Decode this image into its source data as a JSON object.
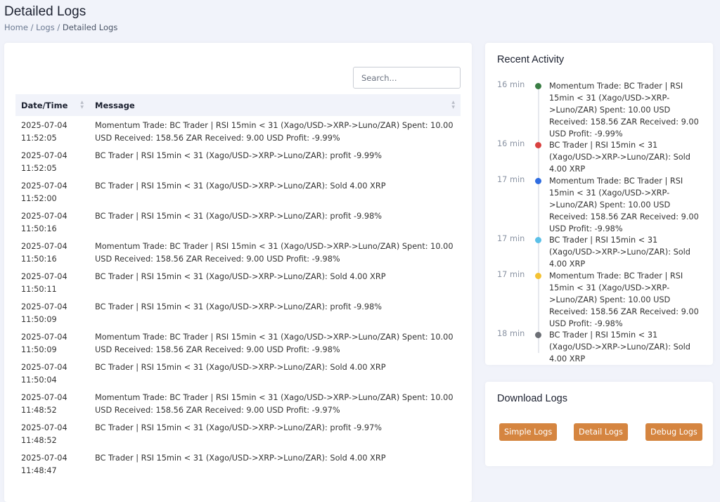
{
  "page": {
    "title": "Detailed Logs",
    "breadcrumb": [
      "Home",
      "Logs",
      "Detailed Logs"
    ]
  },
  "logs": {
    "search_placeholder": "Search...",
    "columns": [
      "Date/Time",
      "Message"
    ],
    "rows": [
      {
        "date": "2025-07-04",
        "time": "11:52:05",
        "message": "Momentum Trade: BC Trader | RSI 15min < 31 (Xago/USD->XRP->Luno/ZAR) Spent: 10.00 USD Received: 158.56 ZAR Received: 9.00 USD Profit: -9.99%"
      },
      {
        "date": "2025-07-04",
        "time": "11:52:05",
        "message": "BC Trader | RSI 15min < 31 (Xago/USD->XRP->Luno/ZAR): profit -9.99%"
      },
      {
        "date": "2025-07-04",
        "time": "11:52:00",
        "message": "BC Trader | RSI 15min < 31 (Xago/USD->XRP->Luno/ZAR): Sold 4.00 XRP"
      },
      {
        "date": "2025-07-04",
        "time": "11:50:16",
        "message": "BC Trader | RSI 15min < 31 (Xago/USD->XRP->Luno/ZAR): profit -9.98%"
      },
      {
        "date": "2025-07-04",
        "time": "11:50:16",
        "message": "Momentum Trade: BC Trader | RSI 15min < 31 (Xago/USD->XRP->Luno/ZAR) Spent: 10.00 USD Received: 158.56 ZAR Received: 9.00 USD Profit: -9.98%"
      },
      {
        "date": "2025-07-04",
        "time": "11:50:11",
        "message": "BC Trader | RSI 15min < 31 (Xago/USD->XRP->Luno/ZAR): Sold 4.00 XRP"
      },
      {
        "date": "2025-07-04",
        "time": "11:50:09",
        "message": "BC Trader | RSI 15min < 31 (Xago/USD->XRP->Luno/ZAR): profit -9.98%"
      },
      {
        "date": "2025-07-04",
        "time": "11:50:09",
        "message": "Momentum Trade: BC Trader | RSI 15min < 31 (Xago/USD->XRP->Luno/ZAR) Spent: 10.00 USD Received: 158.56 ZAR Received: 9.00 USD Profit: -9.98%"
      },
      {
        "date": "2025-07-04",
        "time": "11:50:04",
        "message": "BC Trader | RSI 15min < 31 (Xago/USD->XRP->Luno/ZAR): Sold 4.00 XRP"
      },
      {
        "date": "2025-07-04",
        "time": "11:48:52",
        "message": "Momentum Trade: BC Trader | RSI 15min < 31 (Xago/USD->XRP->Luno/ZAR) Spent: 10.00 USD Received: 158.56 ZAR Received: 9.00 USD Profit: -9.97%"
      },
      {
        "date": "2025-07-04",
        "time": "11:48:52",
        "message": "BC Trader | RSI 15min < 31 (Xago/USD->XRP->Luno/ZAR): profit -9.97%"
      },
      {
        "date": "2025-07-04",
        "time": "11:48:47",
        "message": "BC Trader | RSI 15min < 31 (Xago/USD->XRP->Luno/ZAR): Sold 4.00 XRP"
      }
    ]
  },
  "activity": {
    "title": "Recent Activity",
    "items": [
      {
        "time": "16 min",
        "color": "#3a7d44",
        "text": "Momentum Trade: BC Trader | RSI 15min < 31 (Xago/USD->XRP->Luno/ZAR) Spent: 10.00 USD Received: 158.56 ZAR Received: 9.00 USD Profit: -9.99%"
      },
      {
        "time": "16 min",
        "color": "#d9413f",
        "text": "BC Trader | RSI 15min < 31 (Xago/USD->XRP->Luno/ZAR): Sold 4.00 XRP"
      },
      {
        "time": "17 min",
        "color": "#2f6de1",
        "text": "Momentum Trade: BC Trader | RSI 15min < 31 (Xago/USD->XRP->Luno/ZAR) Spent: 10.00 USD Received: 158.56 ZAR Received: 9.00 USD Profit: -9.98%"
      },
      {
        "time": "17 min",
        "color": "#5bc0e8",
        "text": "BC Trader | RSI 15min < 31 (Xago/USD->XRP->Luno/ZAR): Sold 4.00 XRP"
      },
      {
        "time": "17 min",
        "color": "#f4c233",
        "text": "Momentum Trade: BC Trader | RSI 15min < 31 (Xago/USD->XRP->Luno/ZAR) Spent: 10.00 USD Received: 158.56 ZAR Received: 9.00 USD Profit: -9.98%"
      },
      {
        "time": "18 min",
        "color": "#6c6f75",
        "text": "BC Trader | RSI 15min < 31 (Xago/USD->XRP->Luno/ZAR): Sold 4.00 XRP"
      }
    ]
  },
  "download": {
    "title": "Download Logs",
    "buttons": [
      "Simple Logs",
      "Detail Logs",
      "Debug Logs"
    ],
    "button_color": "#d58540"
  }
}
